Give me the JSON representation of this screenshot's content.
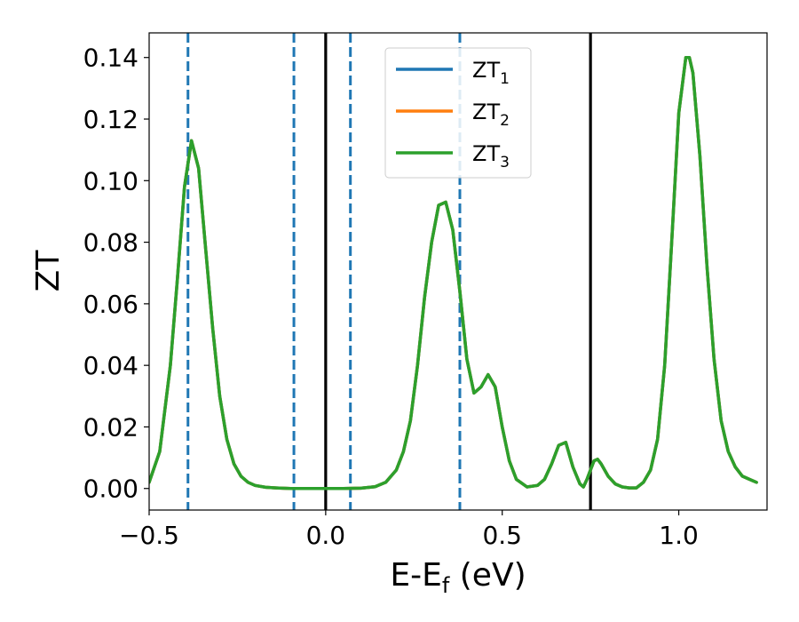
{
  "chart_data": {
    "type": "line",
    "xlabel": "E-E",
    "xlabel_subscript": "f",
    "xlabel_suffix": " (eV)",
    "ylabel": "ZT",
    "xlim": [
      -0.5,
      1.25
    ],
    "ylim": [
      -0.007,
      0.148
    ],
    "x_ticks": [
      -0.5,
      0.0,
      0.5,
      1.0
    ],
    "x_tick_labels": [
      "−0.5",
      "0.0",
      "0.5",
      "1.0"
    ],
    "y_ticks": [
      0.0,
      0.02,
      0.04,
      0.06,
      0.08,
      0.1,
      0.12,
      0.14
    ],
    "y_tick_labels": [
      "0.00",
      "0.02",
      "0.04",
      "0.06",
      "0.08",
      "0.10",
      "0.12",
      "0.14"
    ],
    "grid": false,
    "legend_position": "top-center",
    "series": [
      {
        "name": "ZT",
        "subscript": "1",
        "color": "#1f77b4",
        "x": [
          -0.5,
          -0.47,
          -0.44,
          -0.42,
          -0.4,
          -0.38,
          -0.36,
          -0.34,
          -0.32,
          -0.3,
          -0.28,
          -0.26,
          -0.24,
          -0.22,
          -0.2,
          -0.17,
          -0.14,
          -0.1,
          -0.05,
          0.0,
          0.05,
          0.1,
          0.14,
          0.17,
          0.2,
          0.22,
          0.24,
          0.26,
          0.28,
          0.3,
          0.32,
          0.34,
          0.36,
          0.38,
          0.4,
          0.42,
          0.44,
          0.46,
          0.48,
          0.5,
          0.52,
          0.54,
          0.57,
          0.6,
          0.62,
          0.64,
          0.66,
          0.68,
          0.7,
          0.72,
          0.73,
          0.74,
          0.75,
          0.76,
          0.77,
          0.78,
          0.8,
          0.82,
          0.84,
          0.86,
          0.88,
          0.9,
          0.92,
          0.94,
          0.96,
          0.98,
          1.0,
          1.02,
          1.03,
          1.04,
          1.06,
          1.08,
          1.1,
          1.12,
          1.14,
          1.16,
          1.18,
          1.2,
          1.22
        ],
        "y": [
          0.002,
          0.012,
          0.04,
          0.068,
          0.098,
          0.113,
          0.104,
          0.078,
          0.052,
          0.03,
          0.016,
          0.008,
          0.004,
          0.002,
          0.001,
          0.0004,
          0.0002,
          0.0,
          0.0,
          0.0,
          0.0,
          0.0001,
          0.0006,
          0.002,
          0.006,
          0.012,
          0.022,
          0.04,
          0.062,
          0.08,
          0.092,
          0.093,
          0.084,
          0.064,
          0.042,
          0.031,
          0.033,
          0.037,
          0.033,
          0.02,
          0.009,
          0.003,
          0.0005,
          0.001,
          0.003,
          0.008,
          0.014,
          0.015,
          0.007,
          0.0015,
          0.0005,
          0.003,
          0.006,
          0.009,
          0.0095,
          0.008,
          0.004,
          0.0015,
          0.0005,
          0.0002,
          0.0002,
          0.002,
          0.006,
          0.016,
          0.04,
          0.08,
          0.122,
          0.14,
          0.14,
          0.135,
          0.108,
          0.072,
          0.042,
          0.022,
          0.012,
          0.007,
          0.004,
          0.003,
          0.002
        ]
      },
      {
        "name": "ZT",
        "subscript": "2",
        "color": "#ff7f0e",
        "x": [
          -0.5,
          -0.47,
          -0.44,
          -0.42,
          -0.4,
          -0.38,
          -0.36,
          -0.34,
          -0.32,
          -0.3,
          -0.28,
          -0.26,
          -0.24,
          -0.22,
          -0.2,
          -0.17,
          -0.14,
          -0.1,
          -0.05,
          0.0,
          0.05,
          0.1,
          0.14,
          0.17,
          0.2,
          0.22,
          0.24,
          0.26,
          0.28,
          0.3,
          0.32,
          0.34,
          0.36,
          0.38,
          0.4,
          0.42,
          0.44,
          0.46,
          0.48,
          0.5,
          0.52,
          0.54,
          0.57,
          0.6,
          0.62,
          0.64,
          0.66,
          0.68,
          0.7,
          0.72,
          0.73,
          0.74,
          0.75,
          0.76,
          0.77,
          0.78,
          0.8,
          0.82,
          0.84,
          0.86,
          0.88,
          0.9,
          0.92,
          0.94,
          0.96,
          0.98,
          1.0,
          1.02,
          1.03,
          1.04,
          1.06,
          1.08,
          1.1,
          1.12,
          1.14,
          1.16,
          1.18,
          1.2,
          1.22
        ],
        "y": [
          0.002,
          0.012,
          0.04,
          0.068,
          0.098,
          0.113,
          0.104,
          0.078,
          0.052,
          0.03,
          0.016,
          0.008,
          0.004,
          0.002,
          0.001,
          0.0004,
          0.0002,
          0.0,
          0.0,
          0.0,
          0.0,
          0.0001,
          0.0006,
          0.002,
          0.006,
          0.012,
          0.022,
          0.04,
          0.062,
          0.08,
          0.092,
          0.093,
          0.084,
          0.064,
          0.042,
          0.031,
          0.033,
          0.037,
          0.033,
          0.02,
          0.009,
          0.003,
          0.0005,
          0.001,
          0.003,
          0.008,
          0.014,
          0.015,
          0.007,
          0.0015,
          0.0005,
          0.003,
          0.006,
          0.009,
          0.0095,
          0.008,
          0.004,
          0.0015,
          0.0005,
          0.0002,
          0.0002,
          0.002,
          0.006,
          0.016,
          0.04,
          0.08,
          0.122,
          0.14,
          0.14,
          0.135,
          0.108,
          0.072,
          0.042,
          0.022,
          0.012,
          0.007,
          0.004,
          0.003,
          0.002
        ]
      },
      {
        "name": "ZT",
        "subscript": "3",
        "color": "#2ca02c",
        "x": [
          -0.5,
          -0.47,
          -0.44,
          -0.42,
          -0.4,
          -0.38,
          -0.36,
          -0.34,
          -0.32,
          -0.3,
          -0.28,
          -0.26,
          -0.24,
          -0.22,
          -0.2,
          -0.17,
          -0.14,
          -0.1,
          -0.05,
          0.0,
          0.05,
          0.1,
          0.14,
          0.17,
          0.2,
          0.22,
          0.24,
          0.26,
          0.28,
          0.3,
          0.32,
          0.34,
          0.36,
          0.38,
          0.4,
          0.42,
          0.44,
          0.46,
          0.48,
          0.5,
          0.52,
          0.54,
          0.57,
          0.6,
          0.62,
          0.64,
          0.66,
          0.68,
          0.7,
          0.72,
          0.73,
          0.74,
          0.75,
          0.76,
          0.77,
          0.78,
          0.8,
          0.82,
          0.84,
          0.86,
          0.88,
          0.9,
          0.92,
          0.94,
          0.96,
          0.98,
          1.0,
          1.02,
          1.03,
          1.04,
          1.06,
          1.08,
          1.1,
          1.12,
          1.14,
          1.16,
          1.18,
          1.2,
          1.22
        ],
        "y": [
          0.002,
          0.012,
          0.04,
          0.068,
          0.098,
          0.113,
          0.104,
          0.078,
          0.052,
          0.03,
          0.016,
          0.008,
          0.004,
          0.002,
          0.001,
          0.0004,
          0.0002,
          0.0,
          0.0,
          0.0,
          0.0,
          0.0001,
          0.0006,
          0.002,
          0.006,
          0.012,
          0.022,
          0.04,
          0.062,
          0.08,
          0.092,
          0.093,
          0.084,
          0.064,
          0.042,
          0.031,
          0.033,
          0.037,
          0.033,
          0.02,
          0.009,
          0.003,
          0.0005,
          0.001,
          0.003,
          0.008,
          0.014,
          0.015,
          0.007,
          0.0015,
          0.0005,
          0.003,
          0.006,
          0.009,
          0.0095,
          0.008,
          0.004,
          0.0015,
          0.0005,
          0.0002,
          0.0002,
          0.002,
          0.006,
          0.016,
          0.04,
          0.08,
          0.122,
          0.14,
          0.14,
          0.135,
          0.108,
          0.072,
          0.042,
          0.022,
          0.012,
          0.007,
          0.004,
          0.003,
          0.002
        ]
      }
    ],
    "vlines": [
      {
        "x": -0.39,
        "style": "dashed",
        "color": "#1f77b4"
      },
      {
        "x": -0.09,
        "style": "dashed",
        "color": "#1f77b4"
      },
      {
        "x": 0.0,
        "style": "solid",
        "color": "#000000"
      },
      {
        "x": 0.07,
        "style": "dashed",
        "color": "#1f77b4"
      },
      {
        "x": 0.38,
        "style": "dashed",
        "color": "#1f77b4"
      },
      {
        "x": 0.75,
        "style": "solid",
        "color": "#000000"
      }
    ]
  }
}
